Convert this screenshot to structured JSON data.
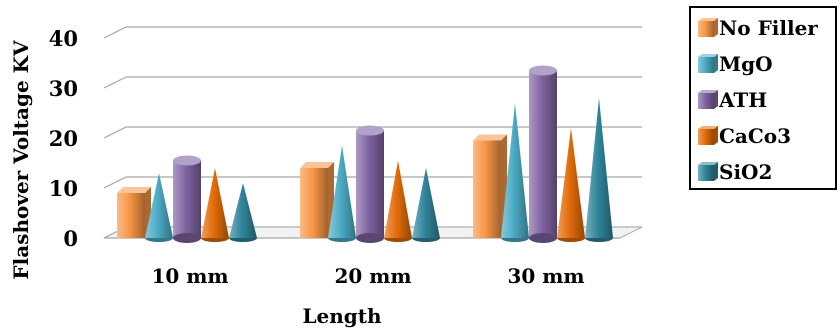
{
  "chart_data": {
    "type": "bar",
    "title": "",
    "xlabel": "Length",
    "ylabel": "Flashover Voltage KV",
    "categories": [
      "10 mm",
      "20 mm",
      "30 mm"
    ],
    "ylim": [
      0,
      40
    ],
    "yticks": [
      "0",
      "10",
      "20",
      "30",
      "40"
    ],
    "grid": true,
    "legend_position": "top-right",
    "series": [
      {
        "name": "No Filler",
        "shape": "box",
        "color": "#f79646",
        "values": [
          9,
          14,
          19.5
        ]
      },
      {
        "name": "MgO",
        "shape": "cone",
        "color": "#4bacc6",
        "values": [
          13,
          18.5,
          27
        ]
      },
      {
        "name": "ATH",
        "shape": "cylinder",
        "color": "#8064a2",
        "values": [
          15.5,
          21.5,
          33.5
        ]
      },
      {
        "name": "CaCo3",
        "shape": "cone",
        "color": "#e36c09",
        "values": [
          14,
          15.5,
          22
        ]
      },
      {
        "name": "SiO2",
        "shape": "cone",
        "color": "#31859c",
        "values": [
          11,
          14,
          28
        ]
      }
    ]
  }
}
